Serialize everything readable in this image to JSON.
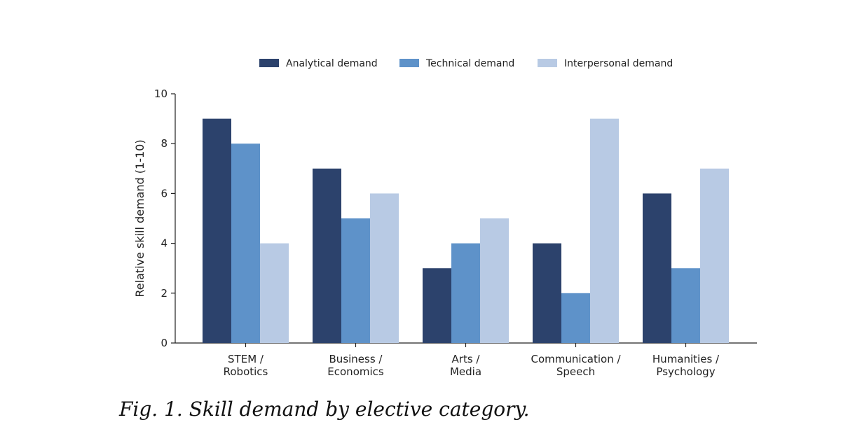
{
  "caption": "Fig. 1. Skill demand by elective category.",
  "chart_data": {
    "type": "bar",
    "categories": [
      [
        "STEM /",
        "Robotics"
      ],
      [
        "Business /",
        "Economics"
      ],
      [
        "Arts /",
        "Media"
      ],
      [
        "Communication /",
        "Speech"
      ],
      [
        "Humanities /",
        "Psychology"
      ]
    ],
    "series": [
      {
        "name": "Analytical demand",
        "color": "#2c426c",
        "values": [
          9,
          7,
          3,
          4,
          6
        ]
      },
      {
        "name": "Technical demand",
        "color": "#5e92c9",
        "values": [
          8,
          5,
          4,
          2,
          3
        ]
      },
      {
        "name": "Interpersonal demand",
        "color": "#b8cae4",
        "values": [
          4,
          6,
          5,
          9,
          7
        ]
      }
    ],
    "ylabel": "Relative skill demand (1-10)",
    "xlabel": "",
    "ylim": [
      0,
      10
    ],
    "yticks": [
      0,
      2,
      4,
      6,
      8,
      10
    ],
    "grid": false,
    "legend_position": "top-center"
  }
}
